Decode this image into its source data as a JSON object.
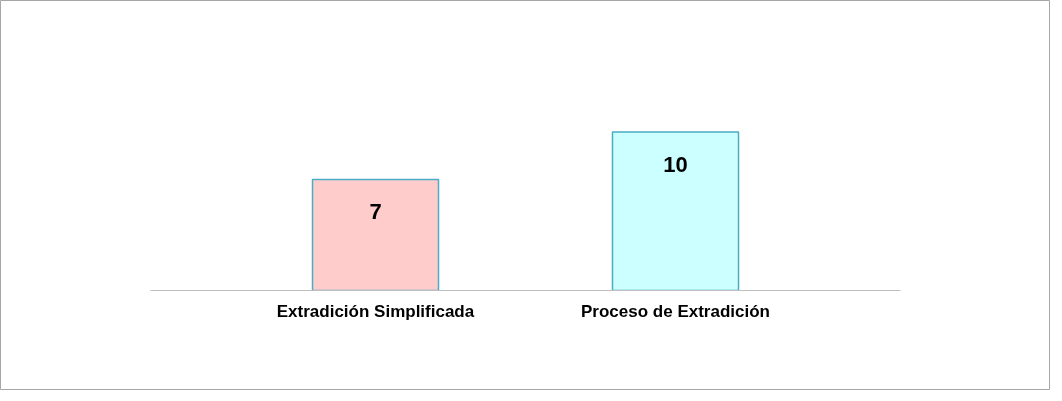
{
  "chart_data": {
    "type": "bar",
    "categories": [
      "Extradición Simplificada",
      "Proceso de Extradición"
    ],
    "values": [
      7,
      10
    ],
    "colors": [
      "#ffcccc",
      "#ccffff"
    ],
    "data_labels": true
  }
}
